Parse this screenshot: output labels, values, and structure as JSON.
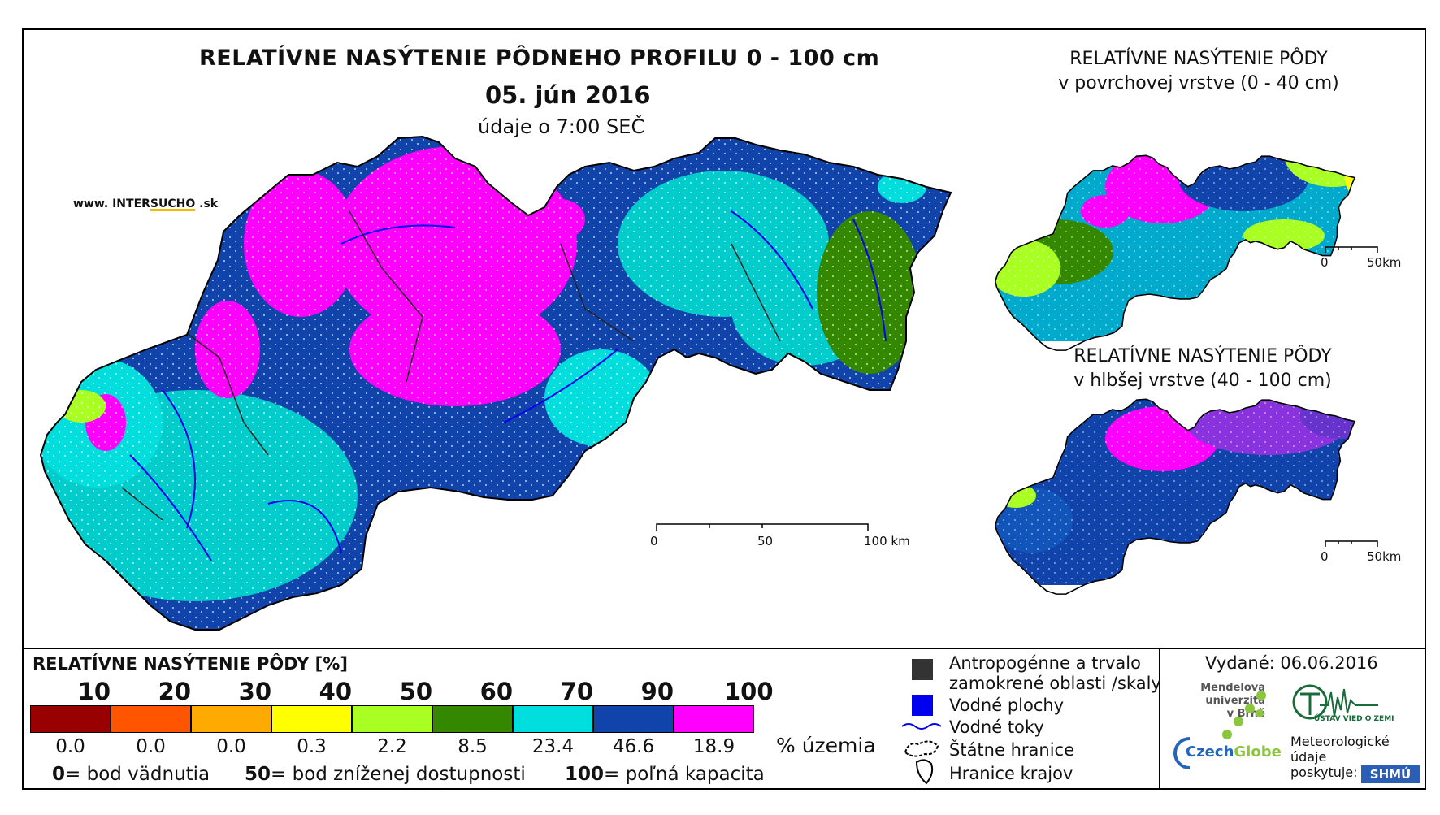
{
  "header": {
    "title": "RELATÍVNE NASÝTENIE PÔDNEHO PROFILU 0 - 100 cm",
    "date": "05. jún 2016",
    "time": "údaje o 7:00 SEČ"
  },
  "watermark": {
    "prefix": "www. INTER",
    "highlight": "SUCHO",
    "suffix": " .sk"
  },
  "main_map": {
    "scale_labels": [
      "0",
      "50",
      "100 km"
    ]
  },
  "inset_surface": {
    "title_line1": "RELATÍVNE NASÝTENIE PÔDY",
    "title_line2": "v povrchovej vrstve (0 - 40 cm)",
    "scale_labels": [
      "0",
      "50km"
    ]
  },
  "inset_deep": {
    "title_line1": "RELATÍVNE NASÝTENIE PÔDY",
    "title_line2": "v hlbšej vrstve (40 - 100 cm)",
    "scale_labels": [
      "0",
      "50km"
    ]
  },
  "legend": {
    "title": "RELATÍVNE NASÝTENIE PÔDY [%]",
    "thresholds": [
      "10",
      "20",
      "30",
      "40",
      "50",
      "60",
      "70",
      "90",
      "100"
    ],
    "classes": [
      {
        "color": "#990000",
        "pct": "0.0"
      },
      {
        "color": "#ff5500",
        "pct": "0.0"
      },
      {
        "color": "#ffaa00",
        "pct": "0.0"
      },
      {
        "color": "#ffff00",
        "pct": "0.3"
      },
      {
        "color": "#aaff22",
        "pct": "2.2"
      },
      {
        "color": "#338800",
        "pct": "8.5"
      },
      {
        "color": "#00dddd",
        "pct": "23.4"
      },
      {
        "color": "#1144aa",
        "pct": "46.6"
      },
      {
        "color": "#ff00ff",
        "pct": "18.9"
      }
    ],
    "unit_suffix": "% územia",
    "notes": [
      {
        "value": "0",
        "text": "= bod vädnutia"
      },
      {
        "value": "50",
        "text": "= bod zníženej dostupnosti"
      },
      {
        "value": "100",
        "text": "= poľná kapacita"
      }
    ]
  },
  "map_legend": {
    "items": [
      {
        "icon": "gray-square-icon",
        "color": "#333333",
        "lines": [
          "Antropogénne a trvalo",
          "zamokrené oblasti /skaly"
        ]
      },
      {
        "icon": "blue-square-icon",
        "color": "#0000ee",
        "lines": [
          "Vodné plochy"
        ]
      },
      {
        "icon": "river-line-icon",
        "color": "#0000ee",
        "lines": [
          "Vodné toky"
        ]
      },
      {
        "icon": "state-border-icon",
        "color": "#000000",
        "lines": [
          "Štátne hranice"
        ]
      },
      {
        "icon": "region-border-icon",
        "color": "#000000",
        "lines": [
          "Hranice krajov"
        ]
      }
    ]
  },
  "issued": "Vydané: 06.06.2016",
  "logos": {
    "mendel_lines": [
      "Mendelova",
      "univerzita",
      "v Brně"
    ],
    "czechglobe_a": "Czech",
    "czechglobe_b": "Globe",
    "uvz": "ÚSTAV VIED O ZEMI",
    "meteo_lines": [
      "Meteorologické",
      "údaje",
      "poskytuje:"
    ],
    "shmu": "SHMÚ"
  },
  "colors": {
    "magenta": "#ff00ff",
    "darkblue": "#1144aa",
    "cyan": "#00dddd",
    "green": "#338800",
    "lightgreen": "#aaff22",
    "yellow": "#ffff00",
    "orange": "#ffaa00",
    "red": "#ff5500",
    "darkred": "#990000"
  }
}
